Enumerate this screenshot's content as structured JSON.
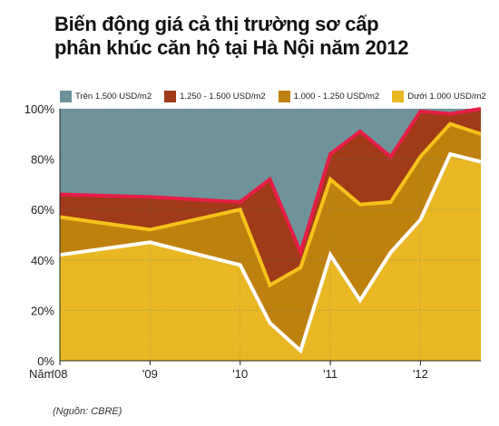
{
  "title_lines": [
    "Biến động giá cả thị trường sơ cấp",
    "phân khúc căn hộ tại Hà Nội năm 2012"
  ],
  "source": "(Nguồn: CBRE)",
  "chart_data": {
    "type": "area",
    "stacked": true,
    "title": "Biến động giá cả thị trường sơ cấp phân khúc căn hộ tại Hà Nội năm 2012",
    "xlabel": "Năm",
    "ylabel": "",
    "ylim": [
      0,
      100
    ],
    "yticks": [
      0,
      20,
      40,
      60,
      80,
      100
    ],
    "ytick_labels": [
      "0%",
      "20%",
      "40%",
      "60%",
      "80%",
      "100%"
    ],
    "x": [
      2008,
      2009,
      2010,
      2010.33,
      2010.67,
      2011,
      2011.33,
      2011.67,
      2012,
      2012.33,
      2012.67
    ],
    "xtick_positions": [
      2008,
      2009,
      2010,
      2011,
      2012
    ],
    "xtick_labels": [
      "'08",
      "'09",
      "'10",
      "'11",
      "'12"
    ],
    "x_axis_prefix": "Năm",
    "grid": true,
    "legend_position": "top",
    "series": [
      {
        "name": "Dưới 1.000 USD/m2",
        "color": "#e8b723",
        "line_color": "#ffffff",
        "values": [
          42,
          47,
          38,
          15,
          4,
          42,
          24,
          43,
          56,
          82,
          79
        ]
      },
      {
        "name": "1.000 - 1.250 USD/m2",
        "color": "#bf810e",
        "line_color": "#f6c21b",
        "values": [
          15,
          5,
          22,
          15,
          33,
          30,
          38,
          20,
          25,
          12,
          11
        ]
      },
      {
        "name": "1.250 - 1.500 USD/m2",
        "color": "#a03a18",
        "line_color": "#e61d46",
        "values": [
          9,
          13,
          3,
          42,
          6,
          10,
          29,
          18,
          18,
          4,
          10
        ]
      },
      {
        "name": "Trên 1.500 USD/m2",
        "color": "#6f939a",
        "line_color": null,
        "values": [
          34,
          35,
          37,
          28,
          57,
          18,
          9,
          19,
          1,
          2,
          0
        ]
      }
    ]
  },
  "legend_order": [
    3,
    2,
    1,
    0
  ],
  "colors": {
    "gridline": "#5f7f86",
    "axis": "#222222"
  }
}
